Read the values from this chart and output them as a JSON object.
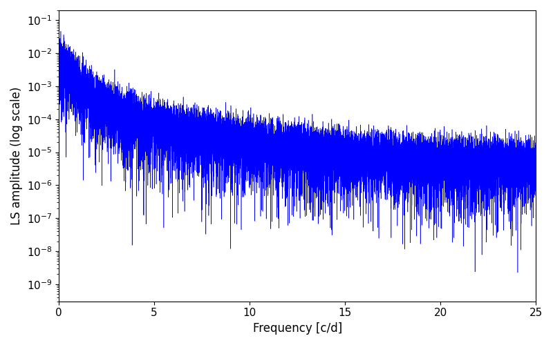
{
  "xlabel": "Frequency [c/d]",
  "ylabel": "LS amplitude (log scale)",
  "xlim": [
    0,
    25
  ],
  "ylim_log": [
    3e-10,
    0.2
  ],
  "line_color": "#0000ff",
  "line_width": 0.4,
  "figsize": [
    8.0,
    5.0
  ],
  "dpi": 100,
  "n_points": 15000,
  "freq_max": 25.0,
  "seed": 77,
  "background_color": "#ffffff",
  "xticks": [
    0,
    5,
    10,
    15,
    20,
    25
  ],
  "xlabel_fontsize": 12,
  "ylabel_fontsize": 12,
  "tick_labelsize": 11
}
